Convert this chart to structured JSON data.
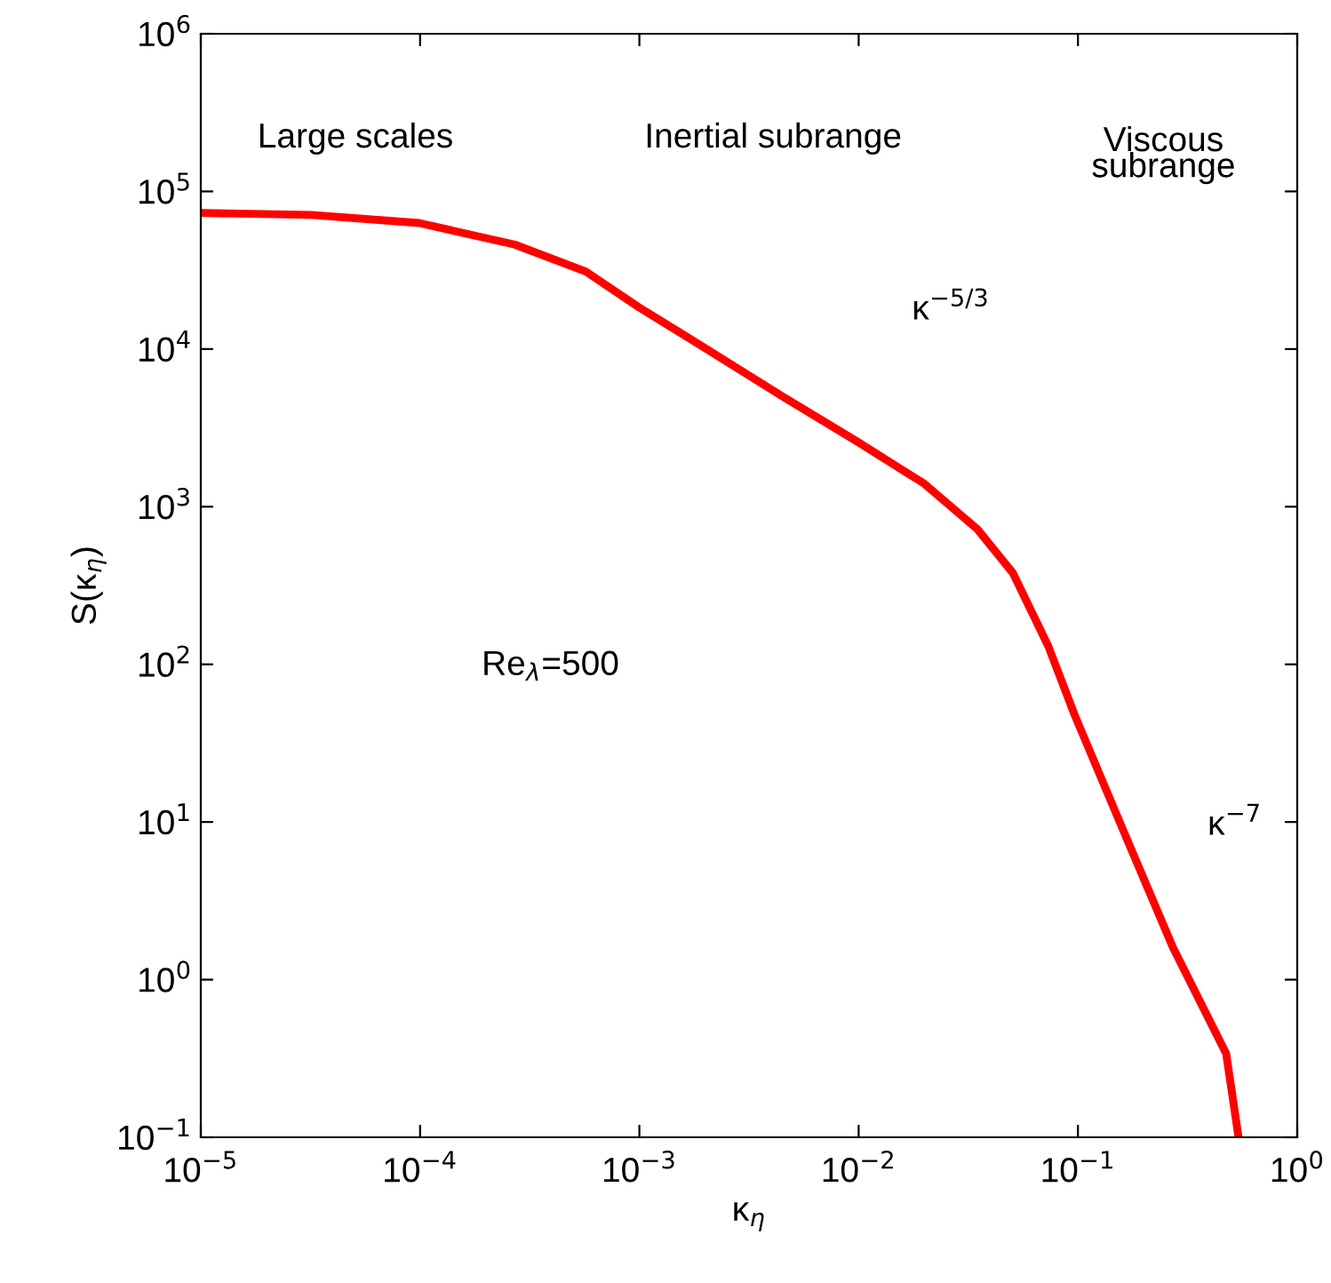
{
  "chart_data": {
    "type": "line",
    "xlabel": "κ$_{η}$",
    "ylabel": "S(κ$_{η}$)",
    "log": "xy",
    "xlim": [
      1e-05,
      1
    ],
    "ylim": [
      0.1,
      1000000
    ],
    "xticks": [
      {
        "value": 1e-05,
        "label": "10$^{−5}$"
      },
      {
        "value": 0.0001,
        "label": "10$^{−4}$"
      },
      {
        "value": 0.001,
        "label": "10$^{−3}$"
      },
      {
        "value": 0.01,
        "label": "10$^{−2}$"
      },
      {
        "value": 0.1,
        "label": "10$^{−1}$"
      },
      {
        "value": 1,
        "label": "10$^{0}$"
      }
    ],
    "yticks": [
      {
        "value": 0.1,
        "label": "10$^{−1}$"
      },
      {
        "value": 1,
        "label": "10$^{0}$"
      },
      {
        "value": 10,
        "label": "10$^{1}$"
      },
      {
        "value": 100,
        "label": "10$^{2}$"
      },
      {
        "value": 1000,
        "label": "10$^{3}$"
      },
      {
        "value": 10000,
        "label": "10$^{4}$"
      },
      {
        "value": 100000,
        "label": "10$^{5}$"
      },
      {
        "value": 1000000,
        "label": "10$^{6}$"
      }
    ],
    "grid": false,
    "legend": false,
    "marker": "none",
    "line_style": "solid",
    "series": [
      {
        "color": "#ff0000",
        "x": [
          1e-05,
          3.2e-05,
          9.9e-05,
          0.00027,
          0.00057,
          0.00099,
          0.0021,
          0.0045,
          0.0098,
          0.0199,
          0.0348,
          0.0505,
          0.0733,
          0.097,
          0.155,
          0.271,
          0.474,
          0.54
        ],
        "values": [
          73000,
          71000,
          63000,
          46000,
          31000,
          18500,
          9700,
          5000,
          2600,
          1400,
          720,
          380,
          130,
          47,
          10,
          1.6,
          0.34,
          0.1
        ]
      }
    ],
    "annotations": [
      "Large scales",
      "Inertial subrange",
      "Viscous\nsubrange",
      "Re$_{λ}$=500",
      "κ$^{−5/3}$",
      "κ$^{−7}$"
    ]
  }
}
